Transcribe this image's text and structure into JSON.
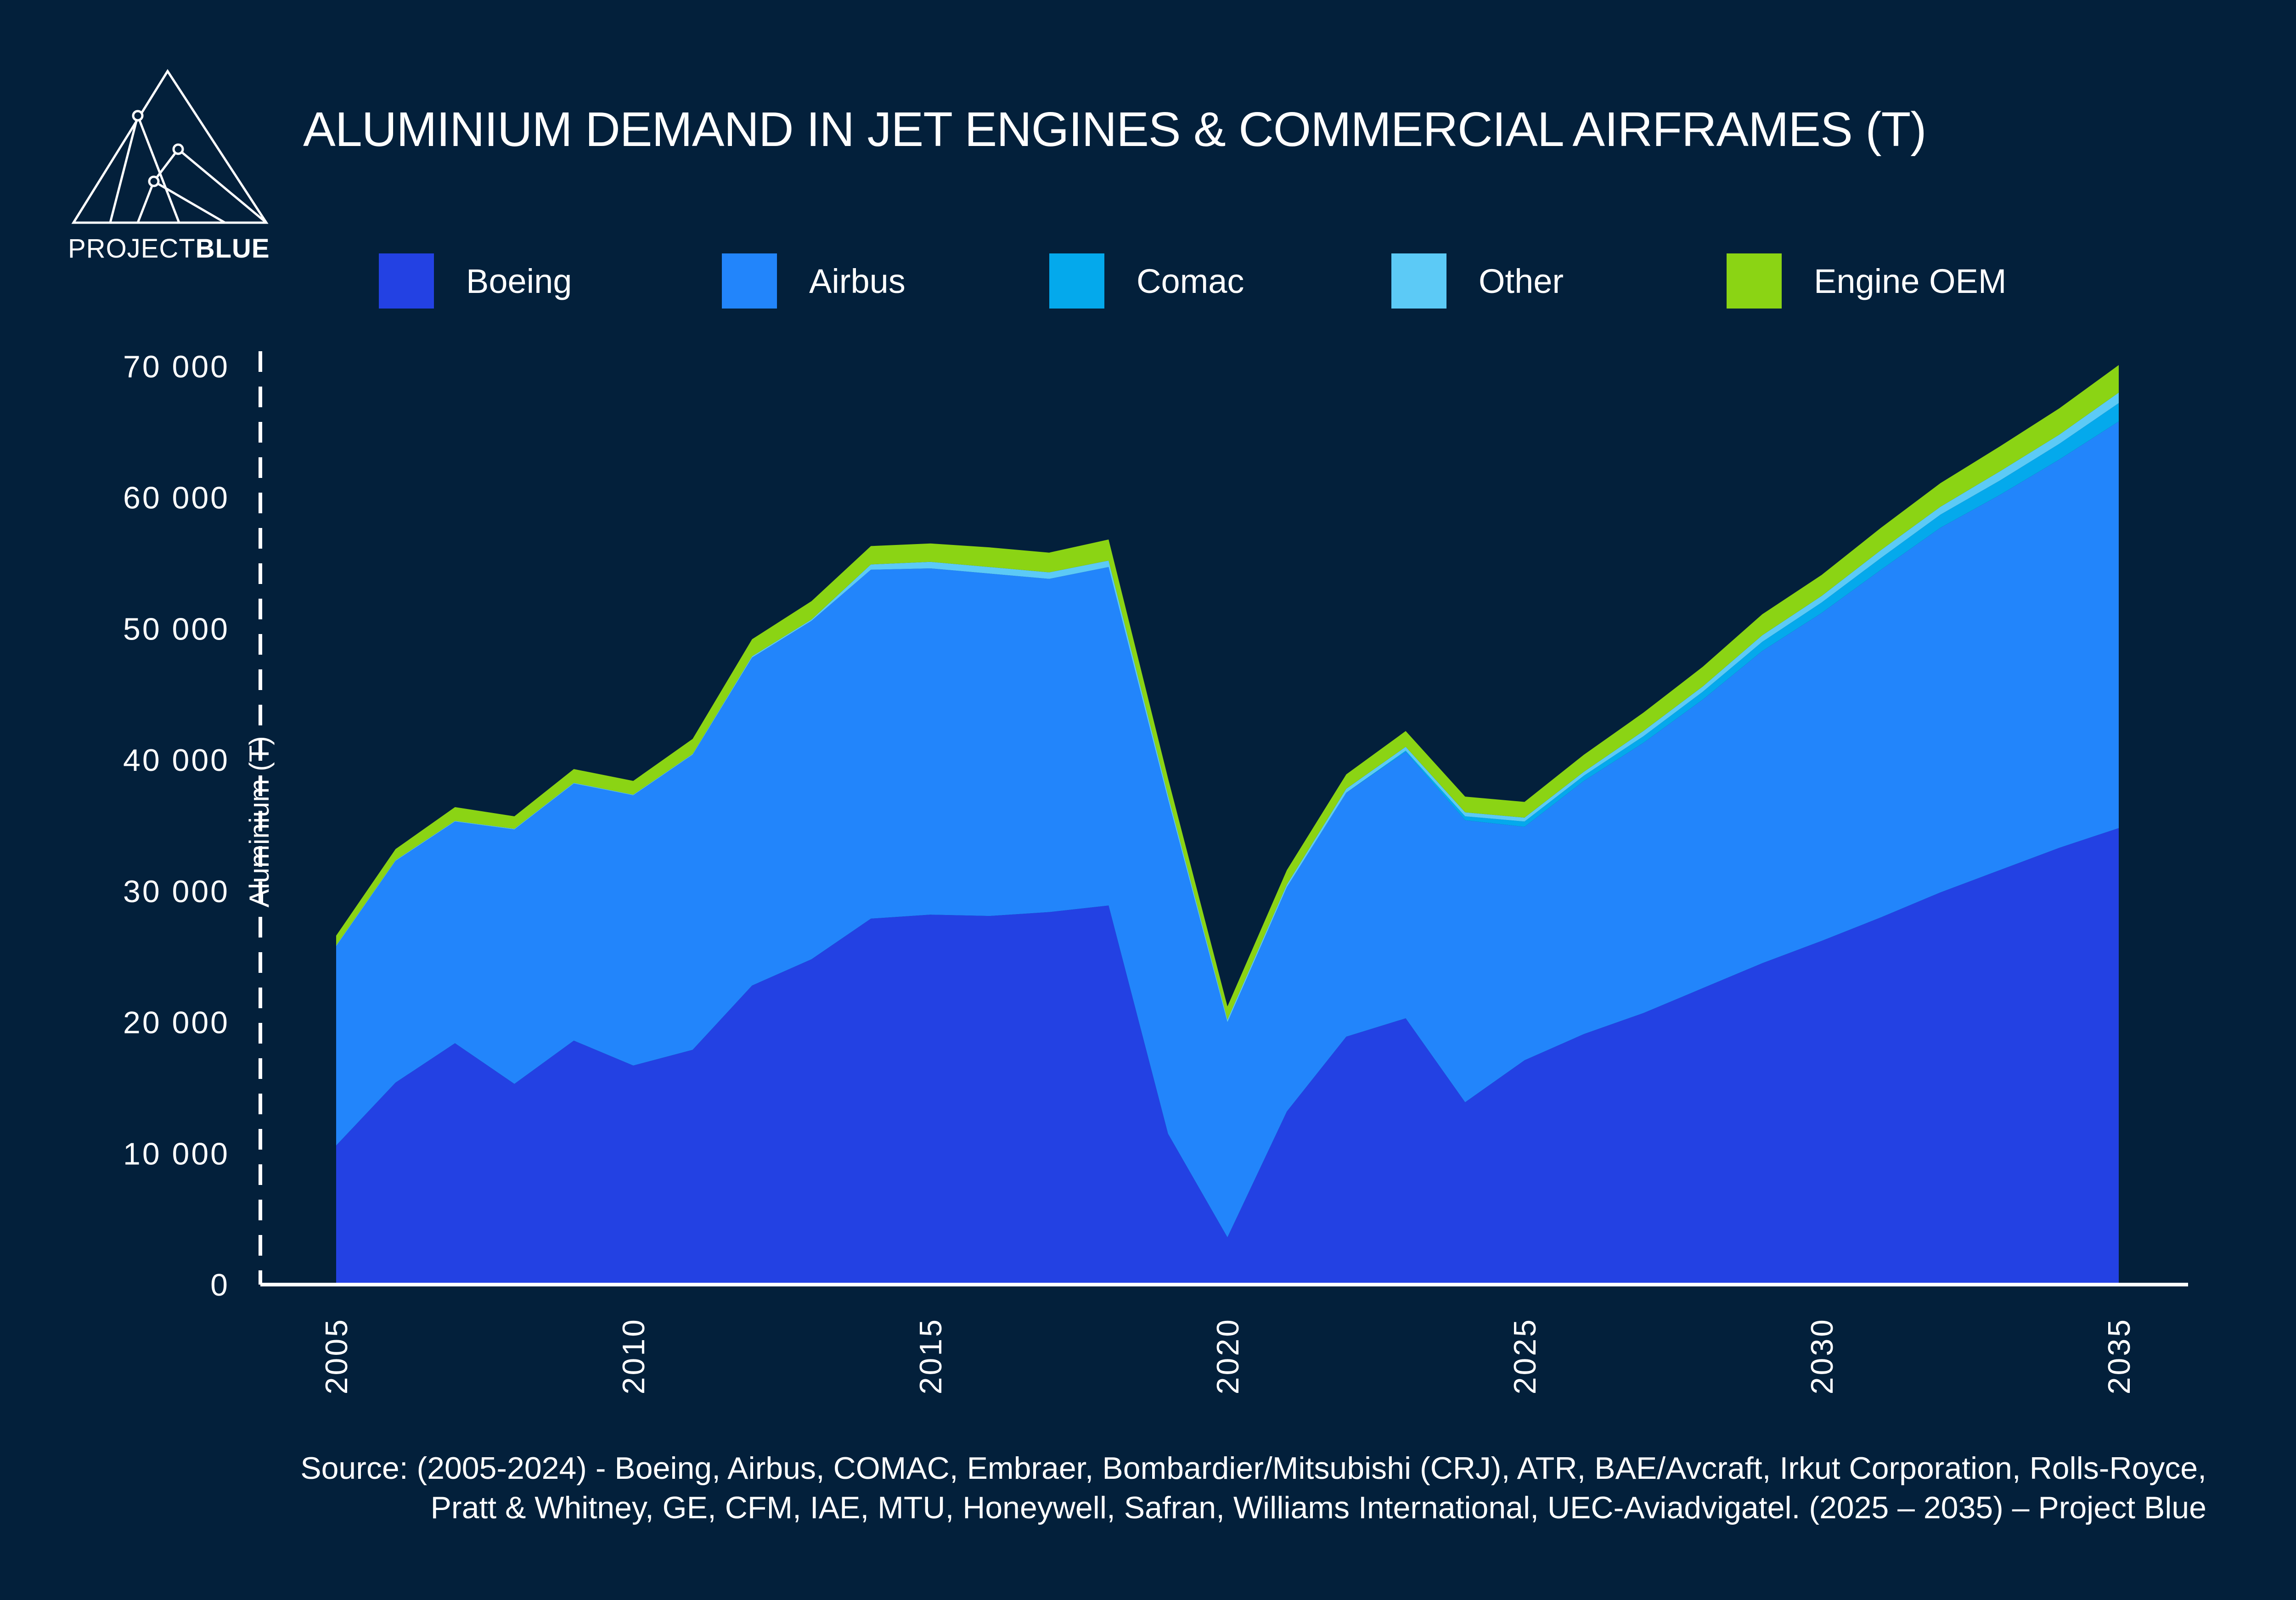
{
  "logo": {
    "text_light": "PROJECT",
    "text_bold": "BLUE"
  },
  "colors": {
    "background": "#03203b",
    "boeing": "#2341e3",
    "airbus": "#2285fb",
    "comac": "#04a9ec",
    "other": "#5ccaf6",
    "engine_oem": "#8bd414"
  },
  "chart_data": {
    "type": "area",
    "stacked": true,
    "title": "ALUMINIUM DEMAND IN JET ENGINES & COMMERCIAL AIRFRAMES (T)",
    "xlabel": "",
    "ylabel": "Aluminium (T)",
    "ylim": [
      0,
      70000
    ],
    "yticks": [
      0,
      10000,
      20000,
      30000,
      40000,
      50000,
      60000,
      70000
    ],
    "ytick_labels": [
      "0",
      "10 000",
      "20 000",
      "30 000",
      "40 000",
      "50 000",
      "60 000",
      "70 000"
    ],
    "xlim": [
      2005,
      2035
    ],
    "xticks": [
      2005,
      2010,
      2015,
      2020,
      2025,
      2030,
      2035
    ],
    "xtick_labels": [
      "2005",
      "2010",
      "2015",
      "2020",
      "2025",
      "2030",
      "2035"
    ],
    "legend_position": "top",
    "grid": false,
    "x": [
      2005,
      2006,
      2007,
      2008,
      2009,
      2010,
      2011,
      2012,
      2013,
      2014,
      2015,
      2016,
      2017,
      2018,
      2019,
      2020,
      2021,
      2022,
      2023,
      2024,
      2025,
      2026,
      2027,
      2028,
      2029,
      2030,
      2031,
      2032,
      2033,
      2034,
      2035
    ],
    "series": [
      {
        "name": "Boeing",
        "color": "#2341e3",
        "values": [
          10600,
          15400,
          18400,
          15300,
          18600,
          16700,
          17900,
          22800,
          24800,
          27900,
          28200,
          28100,
          28400,
          28900,
          11500,
          3600,
          13200,
          18900,
          20300,
          13900,
          17100,
          19100,
          20700,
          22600,
          24500,
          26200,
          28000,
          29900,
          31600,
          33300,
          34800
        ]
      },
      {
        "name": "Airbus",
        "color": "#2285fb",
        "values": [
          15200,
          16900,
          16900,
          19400,
          19600,
          20600,
          22500,
          25000,
          25800,
          26600,
          26400,
          26100,
          25400,
          25800,
          25500,
          16400,
          17100,
          18600,
          20300,
          21500,
          17800,
          19300,
          20600,
          22000,
          23800,
          25000,
          26500,
          27800,
          28600,
          29600,
          31000
        ]
      },
      {
        "name": "Comac",
        "color": "#04a9ec",
        "values": [
          0,
          0,
          0,
          0,
          0,
          0,
          0,
          0,
          0,
          0,
          0,
          0,
          0,
          0,
          0,
          0,
          0,
          0,
          100,
          300,
          400,
          400,
          500,
          600,
          700,
          800,
          900,
          1000,
          1100,
          1200,
          1400
        ]
      },
      {
        "name": "Other",
        "color": "#5ccaf6",
        "values": [
          50,
          50,
          50,
          50,
          50,
          50,
          50,
          100,
          100,
          400,
          500,
          500,
          500,
          500,
          300,
          200,
          200,
          300,
          300,
          300,
          300,
          300,
          400,
          400,
          500,
          500,
          600,
          600,
          700,
          700,
          800
        ]
      },
      {
        "name": "Engine OEM",
        "color": "#8bd414",
        "values": [
          750,
          850,
          1050,
          950,
          1050,
          1050,
          1150,
          1300,
          1400,
          1400,
          1400,
          1500,
          1500,
          1600,
          1300,
          1000,
          1100,
          1100,
          1200,
          1200,
          1200,
          1300,
          1400,
          1500,
          1600,
          1600,
          1700,
          1800,
          1900,
          2000,
          2100
        ]
      }
    ]
  },
  "source": {
    "line1": "Source: (2005-2024) - Boeing, Airbus, COMAC, Embraer, Bombardier/Mitsubishi (CRJ), ATR, BAE/Avcraft, Irkut Corporation, Rolls-Royce,",
    "line2": "Pratt & Whitney, GE, CFM, IAE, MTU, Honeywell, Safran, Williams International, UEC-Aviadvigatel. (2025 – 2035) – Project Blue"
  }
}
